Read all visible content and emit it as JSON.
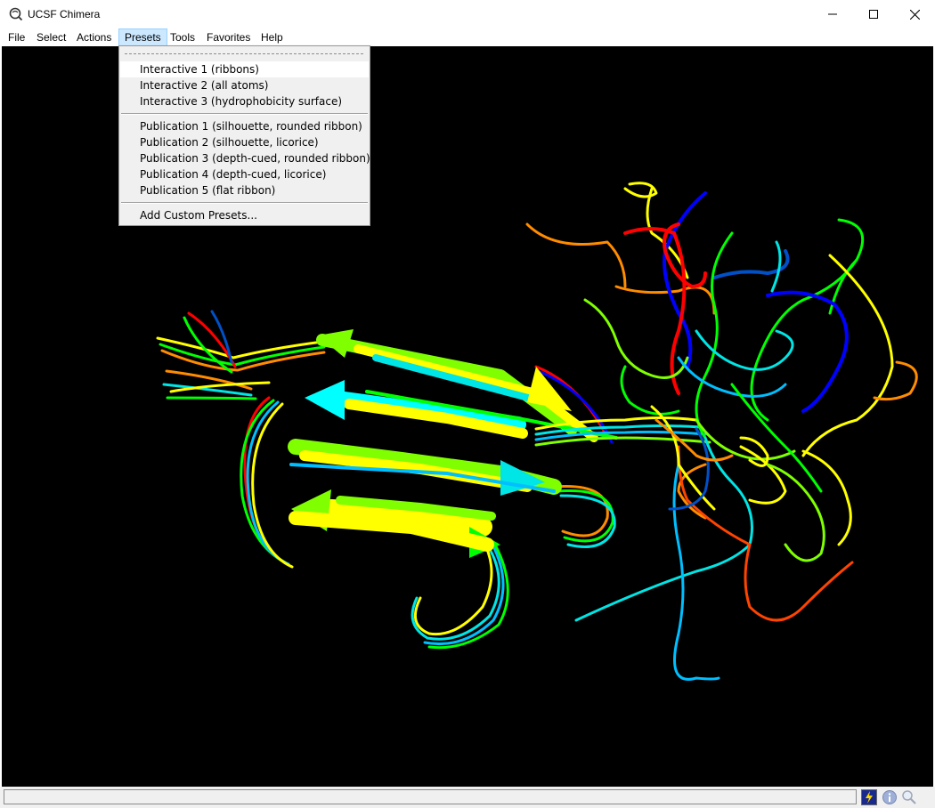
{
  "window": {
    "title": "UCSF Chimera",
    "controls": [
      "minimize-icon",
      "maximize-icon",
      "close-icon"
    ]
  },
  "menubar": {
    "items": [
      {
        "label": "File"
      },
      {
        "label": "Select"
      },
      {
        "label": "Actions"
      },
      {
        "label": "Presets",
        "active": true
      },
      {
        "label": "Tools"
      },
      {
        "label": "Favorites"
      },
      {
        "label": "Help"
      }
    ]
  },
  "presets_menu": {
    "interactive": [
      {
        "label": "Interactive 1 (ribbons)",
        "highlighted": true
      },
      {
        "label": "Interactive 2 (all atoms)"
      },
      {
        "label": "Interactive 3 (hydrophobicity surface)"
      }
    ],
    "publication": [
      {
        "label": "Publication 1 (silhouette, rounded ribbon)"
      },
      {
        "label": "Publication 2 (silhouette, licorice)"
      },
      {
        "label": "Publication 3 (depth-cued, rounded ribbon)"
      },
      {
        "label": "Publication 4 (depth-cued, licorice)"
      },
      {
        "label": "Publication 5 (flat ribbon)"
      }
    ],
    "custom": {
      "label": "Add Custom Presets..."
    }
  },
  "viewport": {
    "background": "#000000",
    "structure": "superimposed protein ribbons, rainbow coloring",
    "ribbon_colors": [
      "#0000ff",
      "#00bfff",
      "#00e5e5",
      "#00ff00",
      "#7fff00",
      "#ffff00",
      "#ff8c00",
      "#ff0000"
    ]
  },
  "statusbar": {
    "message": "",
    "icons": [
      "lightning-icon",
      "info-icon",
      "magnifier-icon"
    ]
  }
}
